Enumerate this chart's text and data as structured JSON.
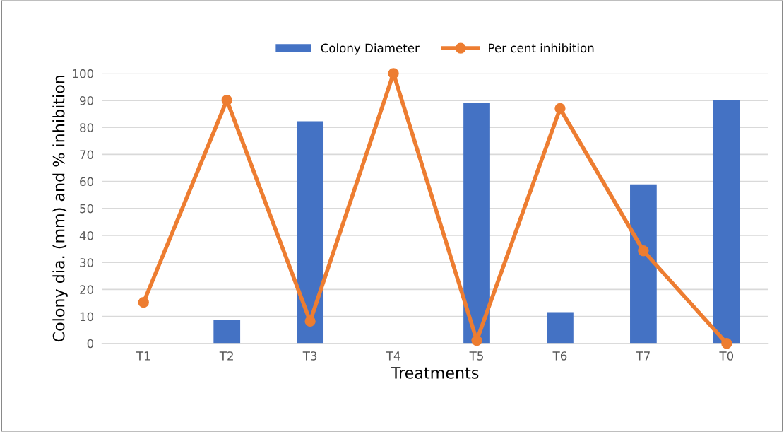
{
  "chart_data": {
    "type": "bar",
    "xlabel": "Treatments",
    "ylabel": "Colony dia. (mm) and % inhibition",
    "categories": [
      "T1",
      "T2",
      "T3",
      "T4",
      "T5",
      "T6",
      "T7",
      "T0"
    ],
    "series": [
      {
        "name": "Colony Diameter",
        "color": "#4472c4",
        "values": [
          0,
          8.7,
          82.3,
          0,
          89.0,
          11.6,
          58.9,
          90.0
        ]
      },
      {
        "name": "Per cent inhibition",
        "type": "line",
        "color": "#ed7d31",
        "marker": "circle",
        "values": [
          15.2,
          90.1,
          8.2,
          100,
          1.1,
          87.0,
          34.3,
          0
        ]
      }
    ],
    "ylim": [
      0,
      100
    ],
    "yticks": [
      0,
      10,
      20,
      30,
      40,
      50,
      60,
      70,
      80,
      90,
      100
    ],
    "grid": "y",
    "legend": "top"
  }
}
